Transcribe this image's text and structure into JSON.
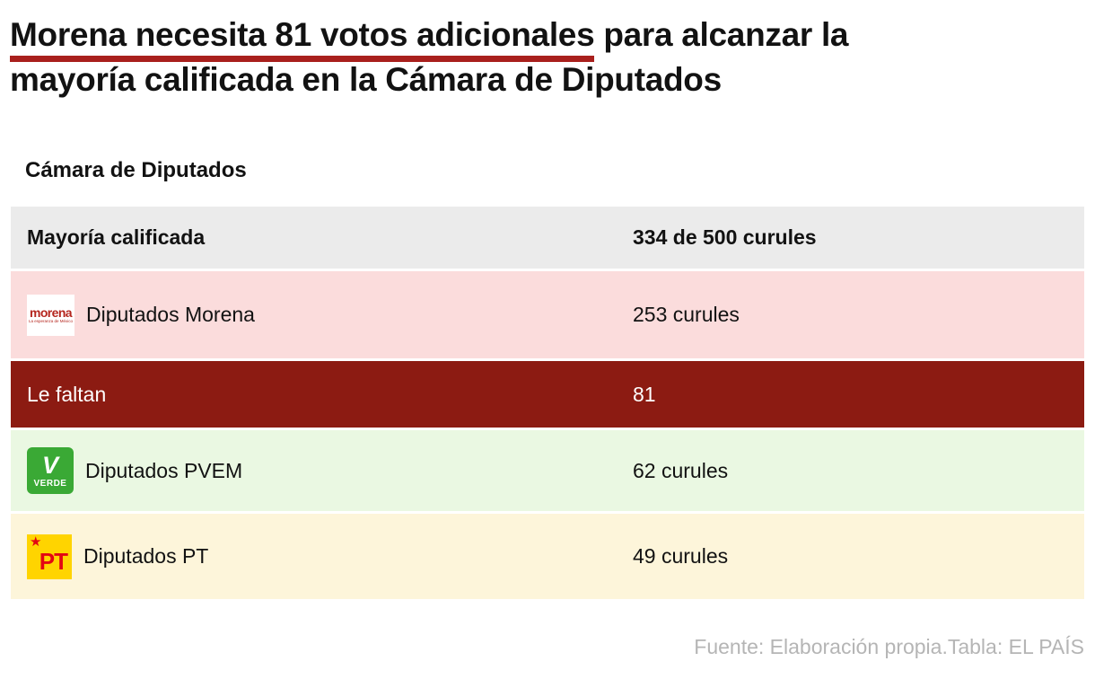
{
  "headline": {
    "highlight": "Morena necesita 81 votos adicionales",
    "line1_rest": " para alcanzar la",
    "line2": "mayoría calificada en la Cámara de Diputados"
  },
  "section": {
    "title": "Cámara de Diputados"
  },
  "table": {
    "header": {
      "label": "Mayoría calificada",
      "value": "334 de 500 curules"
    },
    "rows": [
      {
        "label": "Diputados Morena",
        "value": "253 curules"
      },
      {
        "label": "Le faltan",
        "value": "81"
      },
      {
        "label": "Diputados PVEM",
        "value": "62 curules"
      },
      {
        "label": "Diputados PT",
        "value": "49 curules"
      }
    ]
  },
  "logos": {
    "morena": {
      "text": "morena",
      "tagline": "La esperanza de México"
    },
    "pvem": {
      "v": "V",
      "label": "VERDE"
    },
    "pt": {
      "star": "★",
      "text": "PT"
    }
  },
  "footer": {
    "text": "Fuente: Elaboración propia.Tabla: EL PAÍS"
  },
  "colors": {
    "headline_underline": "#a9201d",
    "header_row_bg": "#ebebeb",
    "morena_row_bg": "#fbdcdc",
    "faltan_row_bg": "#8c1b12",
    "pvem_row_bg": "#eaf8e2",
    "pt_row_bg": "#fdf5da",
    "footer_text": "#b5b5b5",
    "morena_red": "#b5261e",
    "pvem_green": "#3aa935",
    "pt_yellow": "#ffd400",
    "pt_red": "#e30613"
  },
  "chart_data": {
    "type": "table",
    "title": "Cámara de Diputados",
    "rows": [
      [
        "Mayoría calificada",
        "334 de 500 curules"
      ],
      [
        "Diputados Morena",
        "253 curules"
      ],
      [
        "Le faltan",
        "81"
      ],
      [
        "Diputados PVEM",
        "62 curules"
      ],
      [
        "Diputados PT",
        "49 curules"
      ]
    ]
  }
}
